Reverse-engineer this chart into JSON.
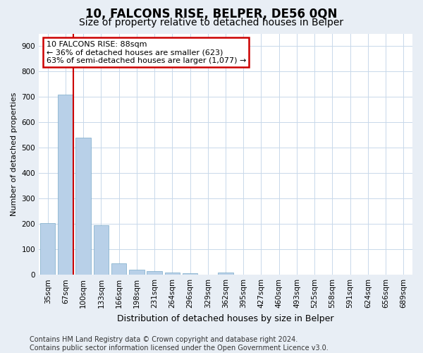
{
  "title": "10, FALCONS RISE, BELPER, DE56 0QN",
  "subtitle": "Size of property relative to detached houses in Belper",
  "xlabel": "Distribution of detached houses by size in Belper",
  "ylabel": "Number of detached properties",
  "categories": [
    "35sqm",
    "67sqm",
    "100sqm",
    "133sqm",
    "166sqm",
    "198sqm",
    "231sqm",
    "264sqm",
    "296sqm",
    "329sqm",
    "362sqm",
    "395sqm",
    "427sqm",
    "460sqm",
    "493sqm",
    "525sqm",
    "558sqm",
    "591sqm",
    "624sqm",
    "656sqm",
    "689sqm"
  ],
  "values": [
    203,
    710,
    540,
    195,
    46,
    20,
    14,
    10,
    5,
    0,
    8,
    0,
    0,
    0,
    0,
    0,
    0,
    0,
    0,
    0,
    0
  ],
  "bar_color": "#b8d0e8",
  "bar_edge_color": "#7aaac8",
  "annotation_text": "10 FALCONS RISE: 88sqm\n← 36% of detached houses are smaller (623)\n63% of semi-detached houses are larger (1,077) →",
  "annotation_box_facecolor": "#ffffff",
  "annotation_box_edgecolor": "#cc0000",
  "red_line_index": 1,
  "ylim": [
    0,
    950
  ],
  "yticks": [
    0,
    100,
    200,
    300,
    400,
    500,
    600,
    700,
    800,
    900
  ],
  "footer_text": "Contains HM Land Registry data © Crown copyright and database right 2024.\nContains public sector information licensed under the Open Government Licence v3.0.",
  "grid_color": "#c8d8ea",
  "plot_bg_color": "#ffffff",
  "fig_bg_color": "#e8eef5",
  "title_fontsize": 12,
  "subtitle_fontsize": 10,
  "ylabel_fontsize": 8,
  "xlabel_fontsize": 9,
  "tick_fontsize": 7.5,
  "footer_fontsize": 7
}
